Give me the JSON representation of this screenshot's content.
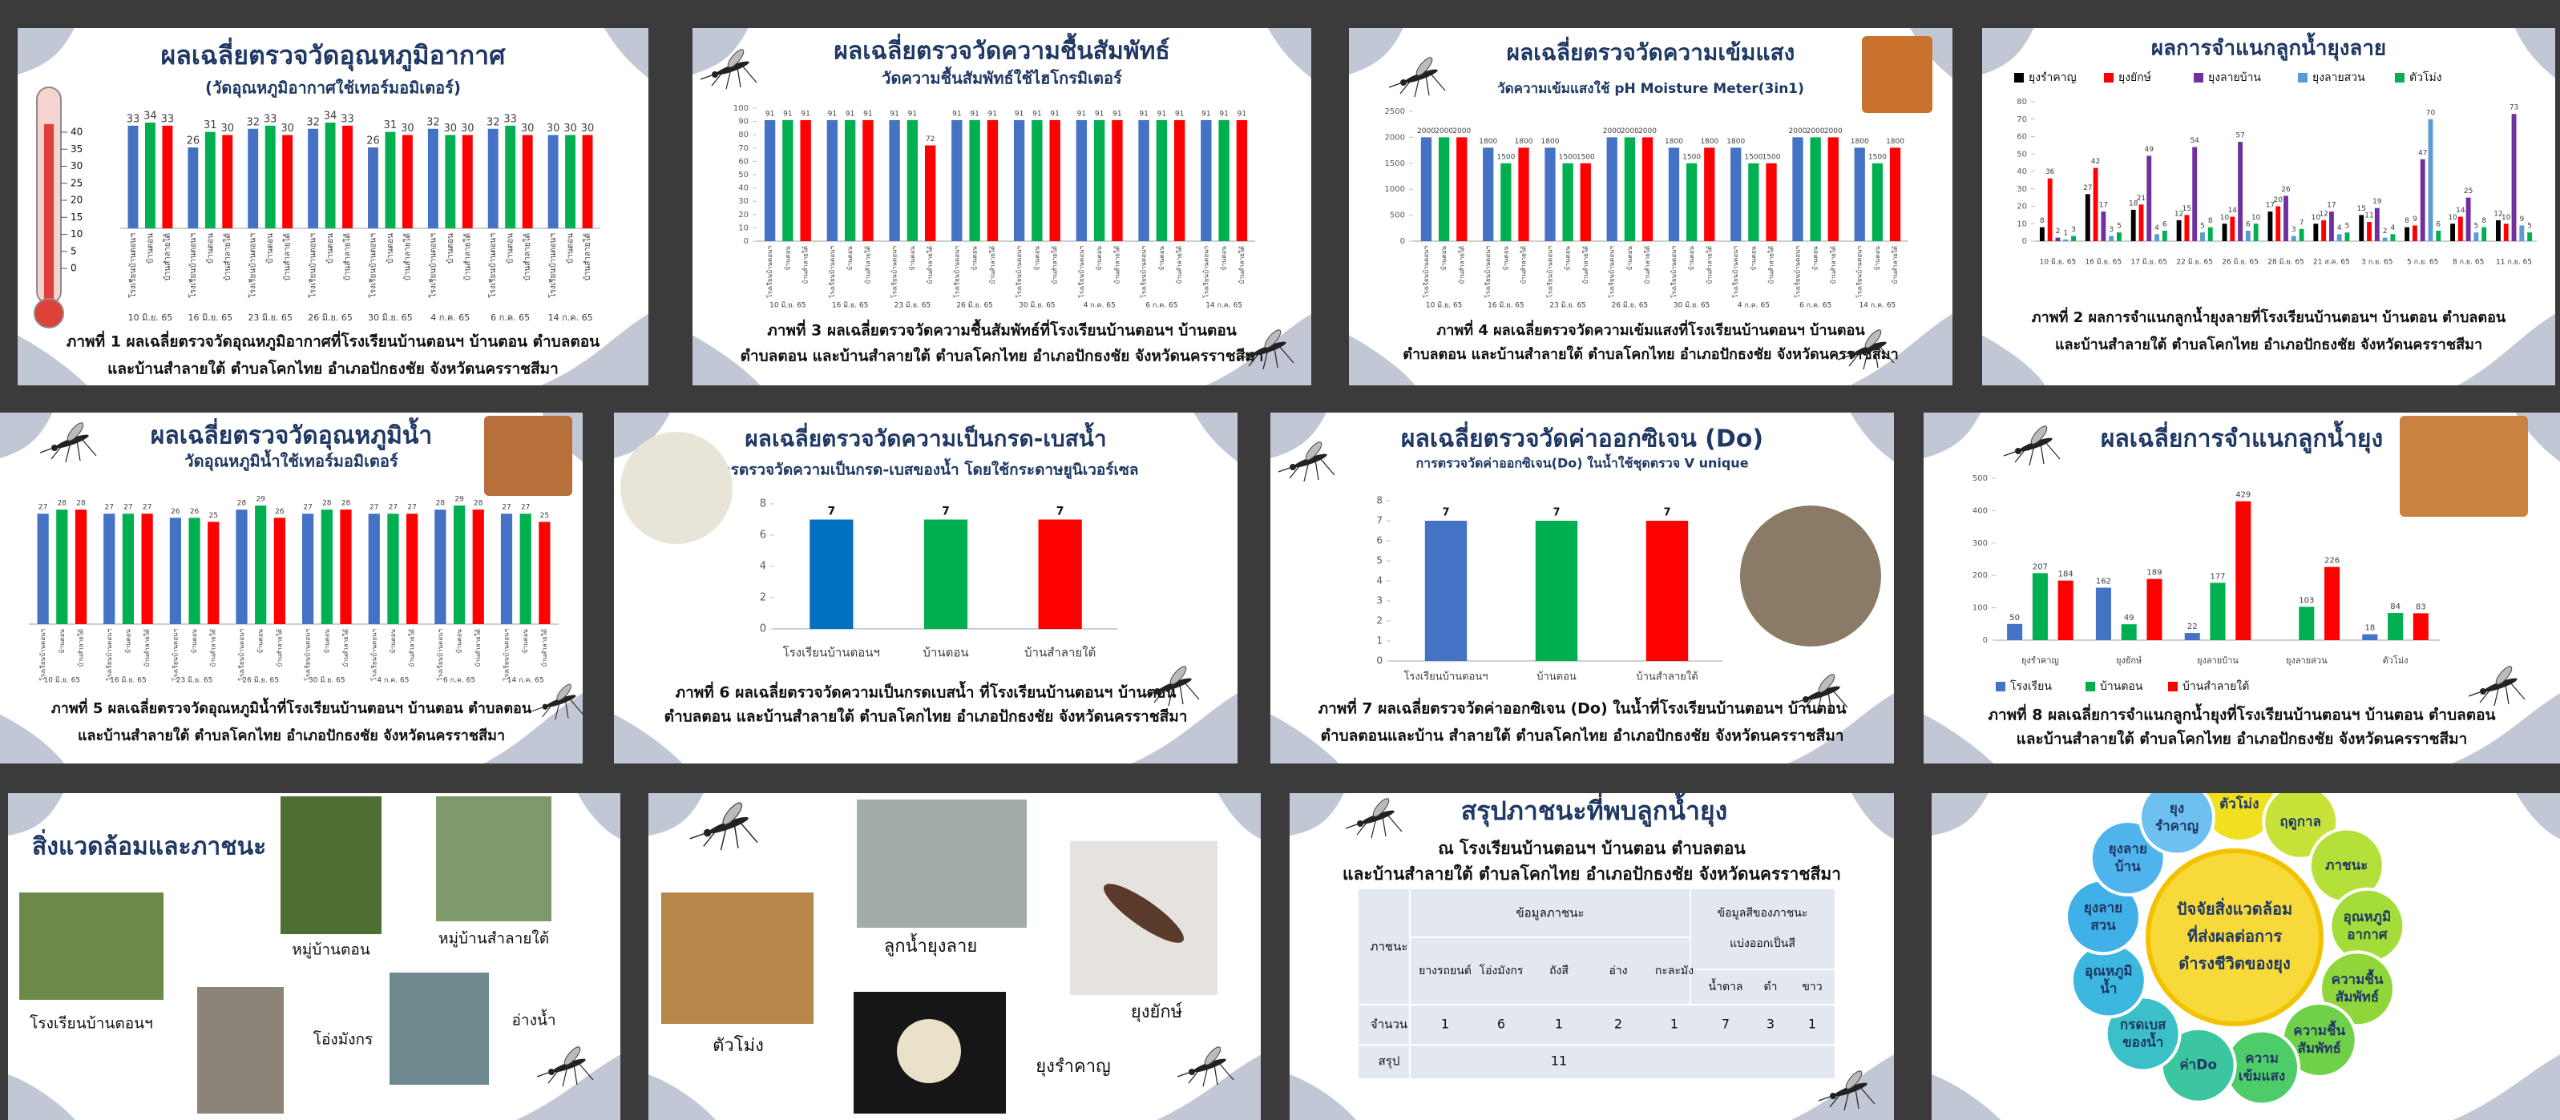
{
  "chart_data": [
    {
      "type": "bar",
      "title": "ผลเฉลี่ยตรวจวัดอุณหภูมิอากาศ",
      "subtitle": "(วัดอุณหภูมิอากาศใช้เทอร์มอมิเตอร์)",
      "caption": [
        "ภาพที่ 1 ผลเฉลี่ยตรวจวัดอุณหภูมิอากาศที่โรงเรียนบ้านตอนฯ บ้านตอน ตำบลตอน",
        "และบ้านสำลายใต้  ตำบลโคกไทย อำเภอปักธงชัย จังหวัดนครราชสีมา"
      ],
      "thermometer_ticks": [
        40,
        35,
        30,
        25,
        20,
        15,
        10,
        5,
        0
      ],
      "categories": [
        "10 มิ.ย. 65",
        "16 มิ.ย. 65",
        "23 มิ.ย. 65",
        "26 มิ.ย. 65",
        "30 มิ.ย. 65",
        "4 ก.ค. 65",
        "6 ก.ค. 65",
        "14 ก.ค. 65"
      ],
      "series": [
        {
          "name": "โรงเรียนบ้านตอนฯ",
          "color": "#4472c4",
          "values": [
            33,
            26,
            32,
            32,
            26,
            32,
            32,
            30
          ]
        },
        {
          "name": "บ้านตอน",
          "color": "#00b050",
          "values": [
            34,
            31,
            33,
            34,
            31,
            30,
            33,
            30
          ]
        },
        {
          "name": "บ้านสำลายใต้",
          "color": "#ff0000",
          "values": [
            33,
            30,
            30,
            33,
            30,
            30,
            30,
            30
          ]
        }
      ]
    },
    {
      "type": "bar",
      "title": "ผลเฉลี่ยตรวจวัดความชื้นสัมพัทธ์",
      "subtitle": "วัดความชื้นสัมพัทธ์ใช้ไฮโกรมิเตอร์",
      "caption": [
        "ภาพที่ 3 ผลเฉลี่ยตรวจวัดความชื้นสัมพัทธ์ที่โรงเรียนบ้านตอนฯ บ้านตอน",
        "ตำบลตอน และบ้านสำลายใต้ ตำบลโคกไทย อำเภอปักธงชัย จังหวัดนครราชสีมา"
      ],
      "categories": [
        "10 มิ.ย. 65",
        "16 มิ.ย. 65",
        "23 มิ.ย. 65",
        "26 มิ.ย. 65",
        "30 มิ.ย. 65",
        "4 ก.ค. 65",
        "6 ก.ค. 65",
        "14 ก.ค. 65"
      ],
      "series": [
        {
          "name": "โรงเรียนบ้านตอนฯ",
          "color": "#4472c4",
          "values": [
            91,
            91,
            91,
            91,
            91,
            91,
            91,
            91
          ]
        },
        {
          "name": "บ้านตอน",
          "color": "#00b050",
          "values": [
            91,
            91,
            91,
            91,
            91,
            91,
            91,
            91
          ]
        },
        {
          "name": "บ้านสำลายใต้",
          "color": "#ff0000",
          "values": [
            91,
            91,
            72,
            91,
            91,
            91,
            91,
            91
          ]
        }
      ],
      "ylim": [
        0,
        100
      ],
      "yticks": [
        0,
        10,
        20,
        30,
        40,
        50,
        60,
        70,
        80,
        90,
        100
      ]
    },
    {
      "type": "bar",
      "title": "ผลเฉลี่ยตรวจวัดความเข้มแสง",
      "subtitle": "วัดความเข้มแสงใช้ pH Moisture Meter(3in1)",
      "caption": [
        "ภาพที่ 4 ผลเฉลี่ยตรวจวัดความเข้มแสงที่โรงเรียนบ้านตอนฯ บ้านตอน",
        "ตำบลตอน และบ้านสำลายใต้ ตำบลโคกไทย อำเภอปักธงชัย จังหวัดนครราชสีมา"
      ],
      "categories": [
        "10 มิ.ย. 65",
        "16 มิ.ย. 65",
        "23 มิ.ย. 65",
        "26 มิ.ย. 65",
        "30 มิ.ย. 65",
        "4 ก.ค. 65",
        "6 ก.ค. 65",
        "14 ก.ค. 65"
      ],
      "series": [
        {
          "name": "โรงเรียนบ้านตอนฯ",
          "color": "#4472c4",
          "values": [
            2000,
            1800,
            1800,
            2000,
            1800,
            1800,
            2000,
            1800
          ]
        },
        {
          "name": "บ้านตอน",
          "color": "#00b050",
          "values": [
            2000,
            1500,
            1500,
            2000,
            1500,
            1500,
            2000,
            1500
          ]
        },
        {
          "name": "บ้านสำลายใต้",
          "color": "#ff0000",
          "values": [
            2000,
            1800,
            1500,
            2000,
            1800,
            1500,
            2000,
            1800
          ]
        }
      ],
      "ylim": [
        0,
        2500
      ],
      "yticks": [
        0,
        500,
        1000,
        1500,
        2000,
        2500
      ]
    },
    {
      "type": "bar",
      "title": "ผลการจำแนกลูกน้ำยุงลาย",
      "caption": [
        "ภาพที่ 2 ผลการจำแนกลูกน้ำยุงลายที่โรงเรียนบ้านตอนฯ บ้านตอน ตำบลตอน",
        "และบ้านสำลายใต้ ตำบลโคกไทย อำเภอปักธงชัย จังหวัดนครราชสีมา"
      ],
      "categories": [
        "10 มิ.ย. 65",
        "16 มิ.ย. 65",
        "17 มิ.ย. 65",
        "22 มิ.ย. 65",
        "26 มิ.ย. 65",
        "28 มิ.ย. 65",
        "21 ส.ค. 65",
        "3 ก.ย. 65",
        "5 ก.ย. 65",
        "8 ก.ย. 65",
        "11 ก.ย. 65"
      ],
      "series": [
        {
          "name": "ยุงรำคาญ",
          "color": "#000000",
          "values": [
            8,
            27,
            18,
            12,
            10,
            17,
            10,
            15,
            8,
            10,
            12
          ]
        },
        {
          "name": "ยุงยักษ์",
          "color": "#ff0000",
          "values": [
            36,
            42,
            21,
            15,
            14,
            20,
            12,
            11,
            9,
            14,
            10
          ]
        },
        {
          "name": "ยุงลายบ้าน",
          "color": "#7030a0",
          "values": [
            2,
            17,
            49,
            54,
            57,
            26,
            17,
            19,
            47,
            25,
            73
          ]
        },
        {
          "name": "ยุงลายสวน",
          "color": "#5b9bd5",
          "values": [
            1,
            3,
            4,
            5,
            6,
            3,
            4,
            2,
            70,
            5,
            9
          ]
        },
        {
          "name": "ตัวโม่ง",
          "color": "#00b050",
          "values": [
            3,
            5,
            6,
            8,
            10,
            7,
            5,
            4,
            6,
            8,
            5
          ]
        }
      ],
      "ylim": [
        0,
        80
      ],
      "yticks": [
        0,
        10,
        20,
        30,
        40,
        50,
        60,
        70,
        80
      ],
      "legend": "top"
    },
    {
      "type": "bar",
      "title": "ผลเฉลี่ยตรวจวัดอุณหภูมิน้ำ",
      "subtitle": "วัดอุณหภูมิน้ำใช้เทอร์มอมิเตอร์",
      "caption": [
        "ภาพที่ 5 ผลเฉลี่ยตรวจวัดอุณหภูมิน้ำที่โรงเรียนบ้านตอนฯ บ้านตอน ตำบลตอน",
        "และบ้านสำลายใต้  ตำบลโคกไทย อำเภอปักธงชัย จังหวัดนครราชสีมา"
      ],
      "categories": [
        "10 มิ.ย. 65",
        "16 มิ.ย. 65",
        "23 มิ.ย. 65",
        "26 มิ.ย. 65",
        "30 มิ.ย. 65",
        "4 ก.ค. 65",
        "6 ก.ค. 65",
        "14 ก.ค. 65"
      ],
      "series": [
        {
          "name": "โรงเรียนบ้านตอนฯ",
          "color": "#4472c4",
          "values": [
            27,
            27,
            26,
            28,
            27,
            27,
            28,
            27
          ]
        },
        {
          "name": "บ้านตอน",
          "color": "#00b050",
          "values": [
            28,
            27,
            26,
            29,
            28,
            27,
            29,
            27
          ]
        },
        {
          "name": "บ้านสำลายใต้",
          "color": "#ff0000",
          "values": [
            28,
            27,
            25,
            26,
            28,
            27,
            28,
            25
          ]
        }
      ]
    },
    {
      "type": "bar",
      "title": "ผลเฉลี่ยตรวจวัดความเป็นกรด-เบสน้ำ",
      "subtitle": "การตรวจวัดความเป็นกรด-เบสของน้ำ โดยใช้กระดาษยูนิเวอร์เซล",
      "caption": [
        "ภาพที่ 6 ผลเฉลี่ยตรวจวัดความเป็นกรดเบสน้ำ ที่โรงเรียนบ้านตอนฯ บ้านตอน",
        "ตำบลตอน และบ้านสำลายใต้  ตำบลโคกไทย อำเภอปักธงชัย จังหวัดนครราชสีมา"
      ],
      "categories": [
        "โรงเรียนบ้านตอนฯ",
        "บ้านตอน",
        "บ้านสำลายใต้"
      ],
      "values": [
        7,
        7,
        7
      ],
      "colors": [
        "#0070c0",
        "#00b050",
        "#ff0000"
      ],
      "ylim": [
        0,
        8
      ],
      "yticks": [
        0,
        2,
        4,
        6,
        8
      ]
    },
    {
      "type": "bar",
      "title": "ผลเฉลี่ยตรวจวัดค่าออกซิเจน (Do)",
      "subtitle": "การตรวจวัดค่าออกซิเจน(Do) ในน้ำใช้ชุดตรวจ V unique",
      "caption": [
        "ภาพที่ 7 ผลเฉลี่ยตรวจวัดค่าออกซิเจน (Do) ในน้ำที่โรงเรียนบ้านตอนฯ บ้านตอน",
        "ตำบลตอนและบ้าน สำลายใต้  ตำบลโคกไทย อำเภอปักธงชัย จังหวัดนครราชสีมา"
      ],
      "categories": [
        "โรงเรียนบ้านตอนฯ",
        "บ้านตอน",
        "บ้านสำลายใต้"
      ],
      "values": [
        7,
        7,
        7
      ],
      "colors": [
        "#4472c4",
        "#00b050",
        "#ff0000"
      ],
      "ylim": [
        0,
        8
      ],
      "yticks": [
        0,
        1,
        2,
        3,
        4,
        5,
        6,
        7,
        8
      ]
    },
    {
      "type": "bar",
      "title": "ผลเฉลี่ยการจำแนกลูกน้ำยุง",
      "caption": [
        "ภาพที่ 8 ผลเฉลี่ยการจำแนกลูกน้ำยุงที่โรงเรียนบ้านตอนฯ บ้านตอน ตำบลตอน",
        "และบ้านสำลายใต้  ตำบลโคกไทย อำเภอปักธงชัย จังหวัดนครราชสีมา"
      ],
      "categories": [
        "ยุงรำคาญ",
        "ยุงยักษ์",
        "ยุงลายบ้าน",
        "ยุงลายสวน",
        "ตัวโม่ง"
      ],
      "series": [
        {
          "name": "โรงเรียน",
          "color": "#4472c4",
          "values": [
            50,
            162,
            22,
            null,
            18
          ]
        },
        {
          "name": "บ้านตอน",
          "color": "#00b050",
          "values": [
            207,
            49,
            177,
            103,
            84
          ]
        },
        {
          "name": "บ้านสำลายใต้",
          "color": "#ff0000",
          "values": [
            184,
            189,
            429,
            226,
            83
          ]
        }
      ],
      "ylim": [
        0,
        500
      ],
      "yticks": [
        0,
        100,
        200,
        300,
        400,
        500
      ],
      "legend": "bottom"
    }
  ],
  "slides": [
    {
      "title": "สิ่งแวดล้อมและภาชนะ",
      "photo_labels": [
        "โรงเรียนบ้านตอนฯ",
        "หมู่บ้านตอน",
        "หมู่บ้านสำลายใต้",
        "โอ่งมังกร",
        "อ่างน้ำ"
      ]
    },
    {
      "photo_labels": [
        "ตัวโม่ง",
        "ลูกน้ำยุงลาย",
        "ยุงยักษ์",
        "ยุงรำคาญ"
      ]
    },
    {
      "title": "สรุปภาชนะที่พบลูกน้ำยุง",
      "subtitle": [
        "ณ โรงเรียนบ้านตอนฯ บ้านตอน ตำบลตอน",
        "และบ้านสำลายใต้  ตำบลโคกไทย อำเภอปักธงชัย จังหวัดนครราชสีมา"
      ],
      "table": {
        "corner": "ภาชนะ",
        "group_1": "ข้อมูลภาชนะ",
        "group_2": [
          "ข้อมูลสีของภาชนะ",
          "แบ่งออกเป็นสี"
        ],
        "columns": [
          "ยางรถยนต์",
          "โอ่งมังกร",
          "ถังสี",
          "อ่าง",
          "กะละมัง",
          "น้ำตาล",
          "ดำ",
          "ขาว"
        ],
        "rows": [
          {
            "label": "จำนวน",
            "cells": [
              1,
              6,
              1,
              2,
              1,
              7,
              3,
              1
            ]
          },
          {
            "label": "สรุป",
            "total": 11
          }
        ]
      }
    },
    {
      "diagram": {
        "center": [
          "ปัจจัยสิ่งแวดล้อม",
          "ที่ส่งผลต่อการ",
          "ดำรงชีวิตของยุง"
        ],
        "nodes": [
          [
            "ตัวโม่ง"
          ],
          [
            "ฤดูกาล"
          ],
          [
            "ภาชนะ"
          ],
          [
            "อุณหภูมิ",
            "อากาศ"
          ],
          [
            "ความชื้น",
            "สัมพัทธ์"
          ],
          [
            "ความชื้น",
            "สัมพัทธ์"
          ],
          [
            "ความ",
            "เข้มแสง"
          ],
          [
            "ค่าDo"
          ],
          [
            "กรดเบส",
            "ของน้ำ"
          ],
          [
            "อุณหภูมิ",
            "น้ำ"
          ],
          [
            "ยุงลาย",
            "สวน"
          ],
          [
            "ยุงลาย",
            "บ้าน"
          ],
          [
            "ยุง",
            "รำคาญ"
          ]
        ]
      }
    }
  ]
}
